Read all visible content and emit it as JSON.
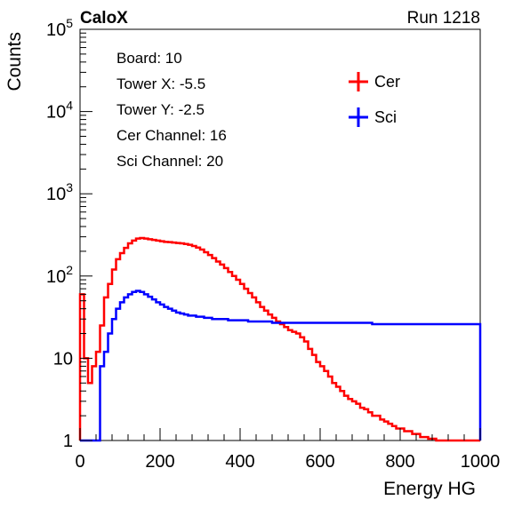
{
  "header": {
    "left_label": "CaloX",
    "right_label": "Run 1218"
  },
  "info_lines": [
    "Board: 10",
    "Tower X: -5.5",
    "Tower Y: -2.5",
    "Cer Channel: 16",
    "Sci Channel: 20"
  ],
  "chart_data": {
    "type": "line",
    "xlabel": "Energy HG",
    "ylabel": "Counts",
    "xlim": [
      0,
      1000
    ],
    "ylim": [
      1,
      100000
    ],
    "yscale": "log",
    "grid": false,
    "legend_position": "top-right",
    "x_ticks": [
      {
        "value": 0,
        "label": "0"
      },
      {
        "value": 200,
        "label": "200"
      },
      {
        "value": 400,
        "label": "400"
      },
      {
        "value": 600,
        "label": "600"
      },
      {
        "value": 800,
        "label": "800"
      },
      {
        "value": 1000,
        "label": "1000"
      }
    ],
    "y_ticks": [
      {
        "value": 1,
        "base": "1",
        "exp": ""
      },
      {
        "value": 10,
        "base": "10",
        "exp": ""
      },
      {
        "value": 100,
        "base": "10",
        "exp": "2"
      },
      {
        "value": 1000,
        "base": "10",
        "exp": "3"
      },
      {
        "value": 10000,
        "base": "10",
        "exp": "4"
      },
      {
        "value": 100000,
        "base": "10",
        "exp": "5"
      }
    ],
    "bin_width": 10,
    "series": [
      {
        "name": "Cer",
        "color": "#ff0000",
        "x": [
          0,
          10,
          20,
          30,
          40,
          50,
          60,
          70,
          80,
          90,
          100,
          110,
          120,
          130,
          140,
          150,
          160,
          170,
          180,
          190,
          200,
          210,
          220,
          230,
          240,
          250,
          260,
          270,
          280,
          290,
          300,
          310,
          320,
          330,
          340,
          350,
          360,
          370,
          380,
          390,
          400,
          410,
          420,
          430,
          440,
          450,
          460,
          470,
          480,
          490,
          500,
          510,
          520,
          530,
          540,
          550,
          560,
          570,
          580,
          590,
          600,
          610,
          620,
          630,
          640,
          650,
          660,
          670,
          680,
          690,
          700,
          710,
          720,
          730,
          740,
          750,
          760,
          770,
          780,
          790,
          800,
          810,
          820,
          830,
          840,
          850,
          860,
          870,
          880,
          890,
          900,
          910,
          920,
          930,
          940,
          950,
          960,
          970,
          980,
          990
        ],
        "values": [
          60,
          10,
          5,
          8,
          12,
          25,
          55,
          80,
          120,
          160,
          190,
          220,
          250,
          270,
          285,
          290,
          285,
          280,
          275,
          270,
          265,
          260,
          258,
          255,
          252,
          250,
          245,
          240,
          232,
          222,
          210,
          195,
          180,
          165,
          150,
          138,
          125,
          112,
          100,
          90,
          80,
          70,
          62,
          55,
          48,
          42,
          38,
          34,
          31,
          28,
          26,
          24,
          22,
          21,
          20,
          18,
          16,
          13,
          11,
          9,
          8,
          7,
          6,
          5,
          4.5,
          4,
          3.5,
          3.2,
          3,
          2.8,
          2.5,
          2.4,
          2.2,
          2,
          2,
          1.8,
          1.7,
          1.6,
          1.5,
          1.4,
          1.4,
          1.3,
          1.3,
          1.2,
          1.2,
          1.1,
          1.1,
          1.05,
          1.05,
          1,
          1,
          1,
          1,
          1,
          1,
          1,
          1,
          1,
          1,
          1
        ]
      },
      {
        "name": "Sci",
        "color": "#0000ff",
        "x": [
          0,
          10,
          20,
          30,
          40,
          50,
          60,
          70,
          80,
          90,
          100,
          110,
          120,
          130,
          140,
          150,
          160,
          170,
          180,
          190,
          200,
          210,
          220,
          230,
          240,
          250,
          260,
          270,
          280,
          290,
          300,
          310,
          320,
          330,
          340,
          350,
          360,
          370,
          380,
          390,
          400,
          410,
          420,
          430,
          440,
          450,
          460,
          470,
          480,
          490,
          500,
          510,
          520,
          530,
          540,
          550,
          560,
          570,
          580,
          590,
          600,
          610,
          620,
          630,
          640,
          650,
          660,
          670,
          680,
          690,
          700,
          710,
          720,
          730,
          740,
          750,
          760,
          770,
          780,
          790,
          800,
          810,
          820,
          830,
          840,
          850,
          860,
          870,
          880,
          890,
          900,
          910,
          920,
          930,
          940,
          950,
          960,
          970,
          980,
          990
        ],
        "values": [
          1,
          1,
          1,
          1,
          1,
          8,
          12,
          20,
          30,
          40,
          48,
          55,
          60,
          64,
          66,
          64,
          60,
          56,
          52,
          48,
          45,
          42,
          40,
          38,
          36,
          35,
          34,
          33,
          33,
          32,
          32,
          31,
          31,
          30,
          30,
          30,
          30,
          29,
          29,
          29,
          29,
          29,
          28,
          28,
          28,
          28,
          28,
          28,
          27,
          27,
          27,
          27,
          27,
          27,
          27,
          27,
          27,
          27,
          27,
          27,
          27,
          27,
          27,
          27,
          27,
          27,
          27,
          27,
          27,
          27,
          27,
          27,
          27,
          26,
          26,
          26,
          26,
          26,
          26,
          26,
          26,
          26,
          26,
          26,
          26,
          26,
          26,
          26,
          26,
          26,
          26,
          26,
          26,
          26,
          26,
          26,
          26,
          26,
          26,
          26
        ]
      }
    ]
  }
}
